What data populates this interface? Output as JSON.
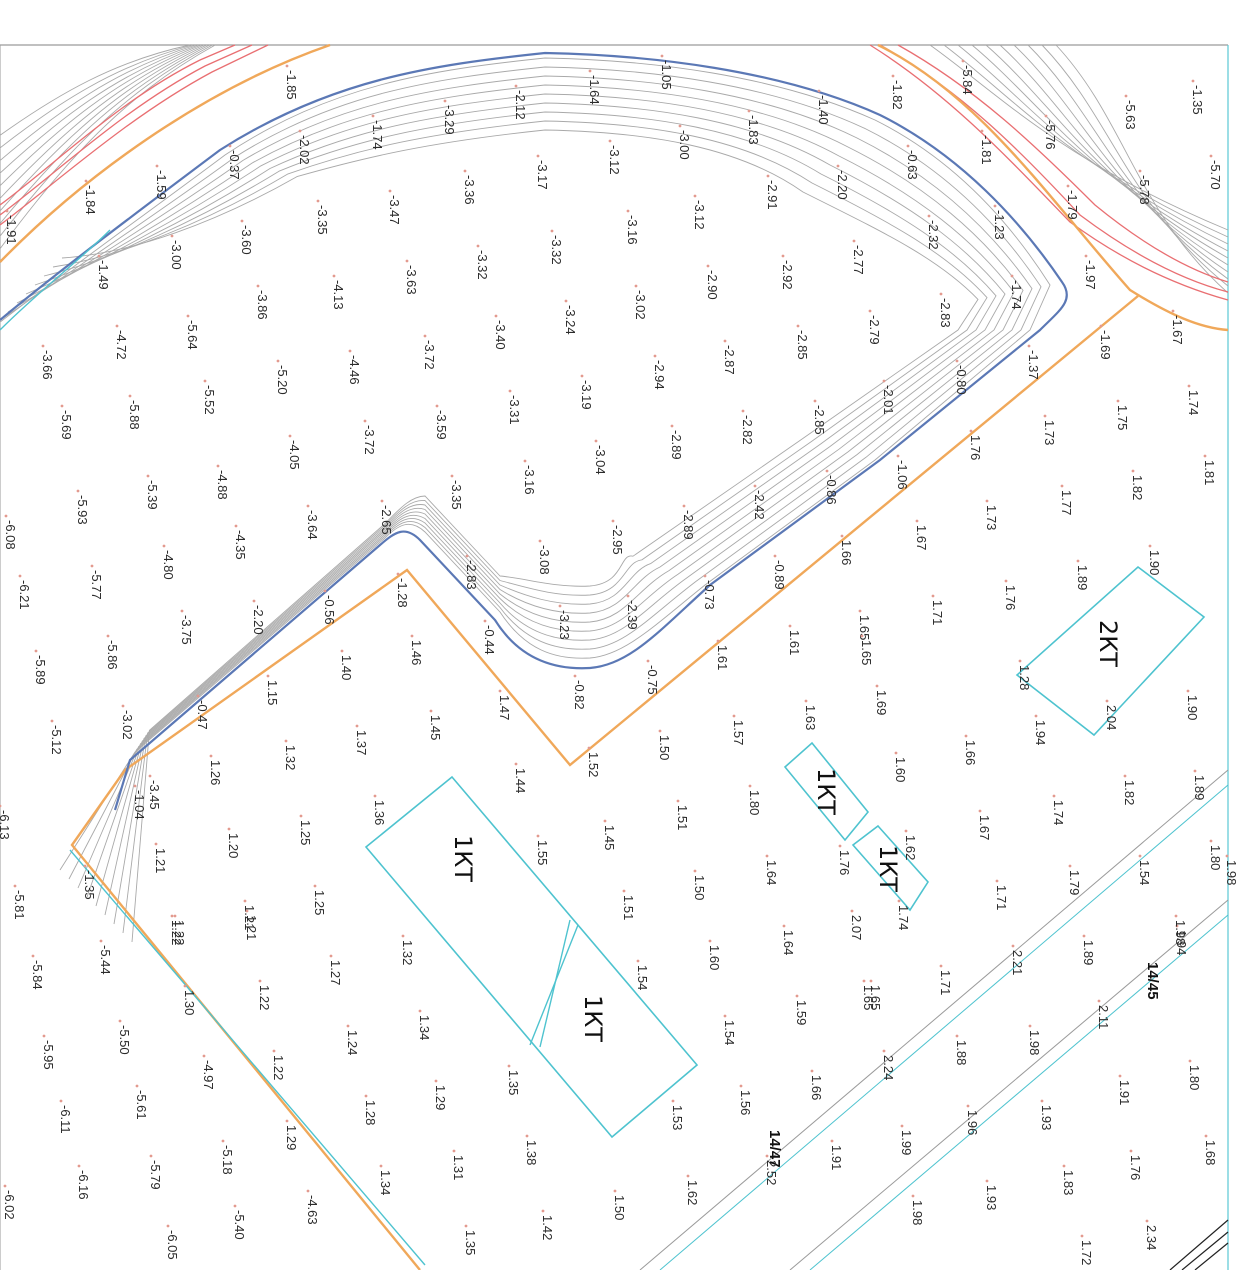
{
  "map": {
    "buildings": [
      {
        "id": "b1",
        "label": "1КТ"
      },
      {
        "id": "b2",
        "label": "1КТ"
      },
      {
        "id": "b3",
        "label": "1КТ"
      },
      {
        "id": "b4",
        "label": "1КТ"
      },
      {
        "id": "b5",
        "label": "2КТ"
      }
    ],
    "sheet_labels": [
      "14/45",
      "14/47"
    ],
    "elevations": [
      "-3.29",
      "-3.00",
      "-3.36",
      "-3.17",
      "-3.12",
      "-3.47",
      "-3.35",
      "-3.60",
      "-3.00",
      "-4.13",
      "-3.63",
      "-3.32",
      "-3.32",
      "-3.16",
      "-3.12",
      "-2.91",
      "-2.20",
      "-2.32",
      "-2.77",
      "-2.92",
      "-2.90",
      "-3.02",
      "-3.24",
      "-3.40",
      "-3.72",
      "-4.46",
      "-5.20",
      "-3.86",
      "-5.64",
      "-4.72",
      "-3.66",
      "-5.52",
      "-5.88",
      "-5.69",
      "-4.05",
      "-3.72",
      "-3.59",
      "-3.31",
      "-3.19",
      "-2.94",
      "-2.87",
      "-2.85",
      "-2.79",
      "-2.83",
      "-2.01",
      "-0.80",
      "-2.85",
      "-2.82",
      "-2.89",
      "-3.04",
      "-3.16",
      "-3.35",
      "-3.64",
      "-4.35",
      "-4.88",
      "-5.39",
      "-5.93",
      "-6.08",
      "-6.21",
      "-5.77",
      "-4.80",
      "-3.75",
      "-2.20",
      "-0.56",
      "-2.65",
      "-2.83",
      "-3.08",
      "-2.95",
      "-2.89",
      "-2.42",
      "-0.86",
      "-1.06",
      "-0.89",
      "-0.73",
      "-2.39",
      "-3.23",
      "-0.44",
      "-0.82",
      "-0.75",
      "-1.28",
      "-0.47",
      "-3.02",
      "-3.45",
      "-1.04",
      "-5.86",
      "-5.89",
      "-5.12",
      "-6.13",
      "-1.35",
      "-5.81",
      "-5.44",
      "-5.84",
      "-5.50",
      "-5.95",
      "-6.11",
      "-5.61",
      "-5.79",
      "-6.16",
      "-6.05",
      "-5.18",
      "-5.40",
      "-4.63",
      "-4.97",
      "-6.02",
      "-1.64",
      "-1.05",
      "-2.12",
      "-1.74",
      "-2.02",
      "-0.37",
      "-1.59",
      "-1.49",
      "-1.84",
      "-1.91",
      "-1.85",
      "-1.83",
      "-1.40",
      "-0.63",
      "-1.23",
      "-1.74",
      "-1.37",
      "-1.82",
      "-1.81",
      "-1.79",
      "-1.97",
      "-5.84",
      "-5.76",
      "-5.63",
      "-5.78",
      "-5.70",
      "-1.35",
      "-1.67",
      "-1.69",
      "1.74",
      "1.75",
      "1.73",
      "1.76",
      "1.81",
      "1.82",
      "1.77",
      "1.73",
      "1.67",
      "1.66",
      "1.65",
      "1.71",
      "1.76",
      "1.89",
      "1.90",
      "1.61",
      "1.65",
      "1.69",
      "1.61",
      "1.63",
      "1.60",
      "1.66",
      "1.57",
      "1.50",
      "1.52",
      "1.47",
      "1.44",
      "1.45",
      "1.46",
      "1.40",
      "1.37",
      "1.32",
      "1.26",
      "1.15",
      "1.45",
      "1.51",
      "1.50",
      "1.60",
      "1.64",
      "1.59",
      "1.65",
      "1.80",
      "1.64",
      "1.76",
      "1.62",
      "1.74",
      "1.67",
      "1.74",
      "1.71",
      "1.79",
      "1.82",
      "1.54",
      "1.80",
      "1.89",
      "1.94",
      "1.90",
      "2.04",
      "1.94",
      "1.28",
      "1.36",
      "1.25",
      "1.20",
      "1.21",
      "1.21",
      "1.22",
      "1.22",
      "1.25",
      "1.27",
      "1.24",
      "1.32",
      "1.34",
      "1.29",
      "1.35",
      "1.28",
      "1.34",
      "1.31",
      "1.38",
      "1.42",
      "1.50",
      "1.53",
      "1.56",
      "1.54",
      "1.55",
      "1.51",
      "1.54",
      "2.07",
      "1.71",
      "1.88",
      "1.93",
      "1.91",
      "1.80",
      "1.76",
      "1.68",
      "1.83",
      "1.93",
      "1.98",
      "1.99",
      "1.91",
      "1.66",
      "1.62",
      "1.98",
      "2.21",
      "2.11",
      "1.98",
      "1.89",
      "2.24",
      "1.96",
      "1.65",
      "1.30",
      "1.22",
      "1.35",
      "1.29",
      "1.22",
      "1.21",
      "2.52",
      "2.34",
      "1.72",
      "1.98"
    ]
  },
  "colors": {
    "contour": "#a9a9a9",
    "pit_edge": "#5b78b5",
    "boundary": "#f0a85a",
    "road": "#e96f72",
    "building": "#4ec3cf",
    "spot": "#e39a8f"
  }
}
